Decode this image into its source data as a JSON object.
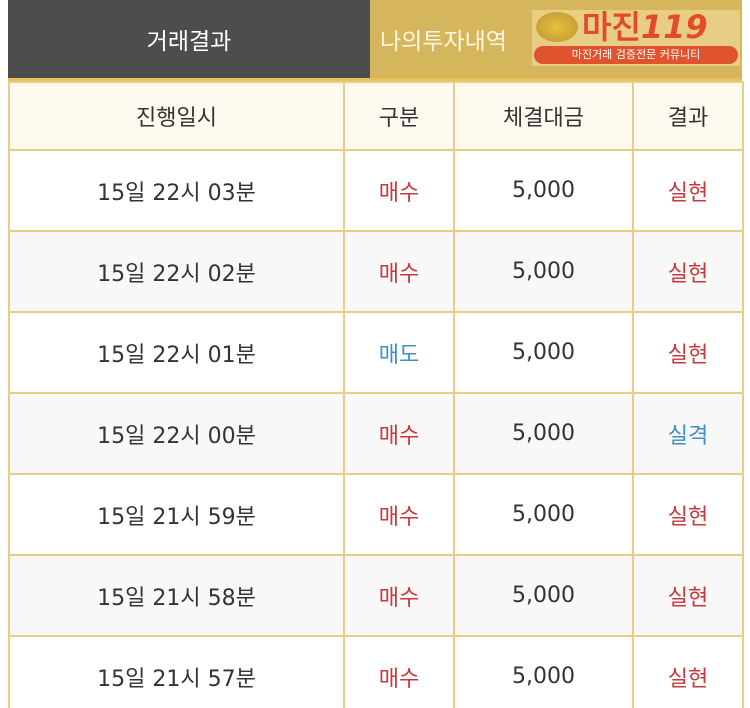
{
  "tabs": [
    {
      "label": "거래결과",
      "active": true
    },
    {
      "label": "나의투자내역",
      "active": false
    }
  ],
  "watermark": {
    "title": "마진119",
    "subtitle": "마진거래 검증전문 커뮤니티"
  },
  "colors": {
    "buy": "#c8383a",
    "sell": "#3b8fc9",
    "win": "#c8383a",
    "lose": "#3b8fc9",
    "border": "#e6ce86",
    "active_tab": "#4d4d4d",
    "inactive_tab": "#d6b65c"
  },
  "table": {
    "headers": [
      "진행일시",
      "구분",
      "체결대금",
      "결과"
    ],
    "rows": [
      {
        "time": "15일 22시 03분",
        "type": "매수",
        "amount": "5,000",
        "result": "실현"
      },
      {
        "time": "15일 22시 02분",
        "type": "매수",
        "amount": "5,000",
        "result": "실현"
      },
      {
        "time": "15일 22시 01분",
        "type": "매도",
        "amount": "5,000",
        "result": "실현"
      },
      {
        "time": "15일 22시 00분",
        "type": "매수",
        "amount": "5,000",
        "result": "실격"
      },
      {
        "time": "15일 21시 59분",
        "type": "매수",
        "amount": "5,000",
        "result": "실현"
      },
      {
        "time": "15일 21시 58분",
        "type": "매수",
        "amount": "5,000",
        "result": "실현"
      },
      {
        "time": "15일 21시 57분",
        "type": "매수",
        "amount": "5,000",
        "result": "실현"
      }
    ]
  }
}
